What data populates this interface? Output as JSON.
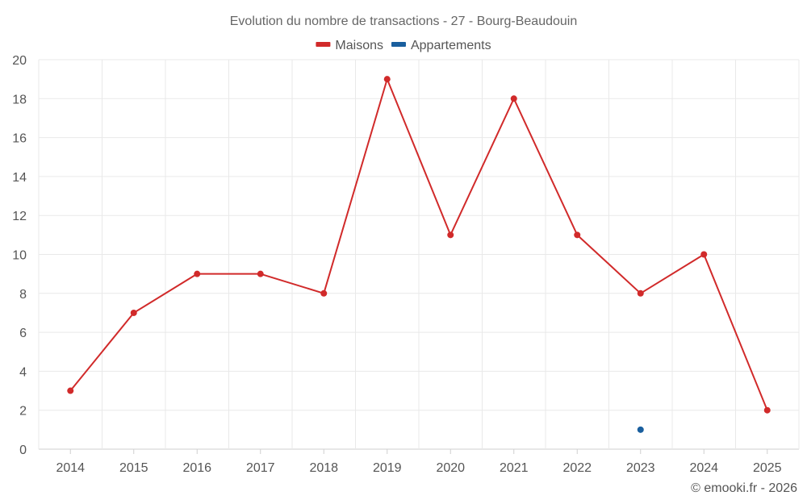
{
  "chart_data": {
    "type": "line",
    "title": "Evolution du nombre de transactions - 27 - Bourg-Beaudouin",
    "categories": [
      "2014",
      "2015",
      "2016",
      "2017",
      "2018",
      "2019",
      "2020",
      "2021",
      "2022",
      "2023",
      "2024",
      "2025"
    ],
    "series": [
      {
        "name": "Maisons",
        "color": "#d12a2a",
        "values": [
          3,
          7,
          9,
          9,
          8,
          19,
          11,
          18,
          11,
          8,
          10,
          2
        ]
      },
      {
        "name": "Appartements",
        "color": "#1a5f9e",
        "values": [
          null,
          null,
          null,
          null,
          null,
          null,
          null,
          null,
          null,
          1,
          null,
          null
        ]
      }
    ],
    "ylim": [
      0,
      20
    ],
    "yticks": [
      0,
      2,
      4,
      6,
      8,
      10,
      12,
      14,
      16,
      18,
      20
    ],
    "legend_position": "top-center",
    "grid": true
  },
  "credit": "© emooki.fr - 2026"
}
